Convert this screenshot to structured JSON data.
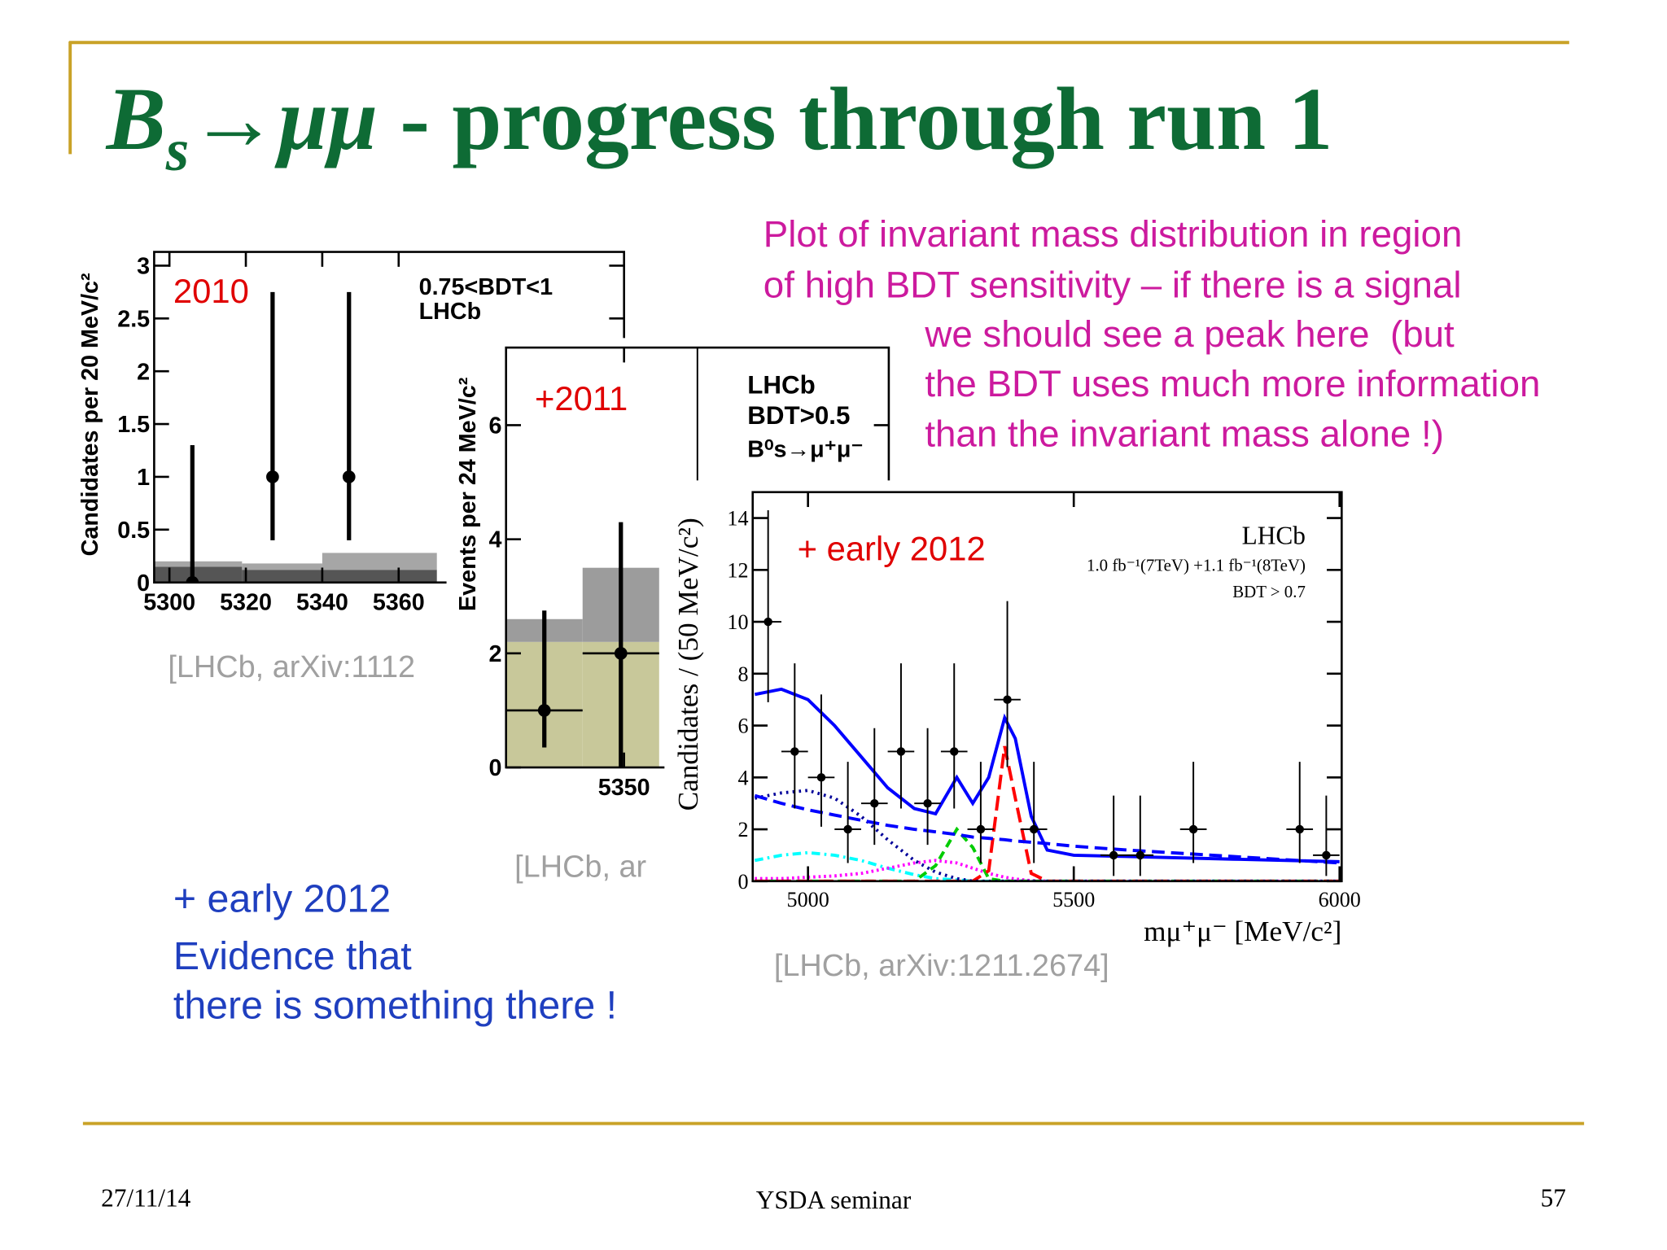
{
  "slide": {
    "title": {
      "b": "B",
      "sub": "s",
      "arrow": "→μμ",
      "rest": " - progress through run 1"
    },
    "note": [
      "Plot of invariant mass distribution in region",
      "of high BDT sensitivity – if there is a signal",
      "we should see a peak here  (but",
      "the BDT uses much more information",
      "than the invariant mass alone !)"
    ],
    "summary": [
      "+ early 2012",
      "Evidence that",
      "there is something there !"
    ],
    "footer": {
      "date": "27/11/14",
      "event": "YSDA seminar",
      "page": "57"
    }
  },
  "chart_data": [
    {
      "type": "scatter",
      "ylabel": "Candidates per 20 MeV/c²",
      "annotations": [
        "2010",
        "0.75<BDT<1",
        "LHCb"
      ],
      "source": "[LHCb, arXiv:1112",
      "xlim": [
        5296,
        5419
      ],
      "ylim": [
        0,
        3.13
      ],
      "xticks": [
        5300,
        5320,
        5340,
        5360
      ],
      "yticks": [
        0,
        0.5,
        1,
        1.5,
        2,
        2.5,
        3
      ],
      "histogram": {
        "bins": [
          5296,
          5319,
          5340,
          5370
        ],
        "layers": [
          {
            "color": "#555555",
            "values": [
              0.15,
              0.12,
              0.12
            ]
          },
          {
            "color": "#a6a6a6",
            "values": [
              0.05,
              0.06,
              0.16
            ]
          }
        ]
      },
      "points": {
        "color": "#000000",
        "x": [
          5306,
          5327,
          5347
        ],
        "values": [
          0,
          1,
          1
        ],
        "err_low": [
          0,
          0.6,
          0.6
        ],
        "err_high": [
          1.3,
          1.75,
          1.75
        ]
      }
    },
    {
      "type": "scatter",
      "ylabel": "Events per 24 MeV/c²",
      "annotations": [
        "+2011",
        "LHCb",
        "BDT>0.5",
        "B⁰s→μ⁺μ⁻"
      ],
      "source": "[LHCb, ar",
      "xlim": [
        5313,
        5433
      ],
      "ylim": [
        0,
        7.36
      ],
      "xticks": [
        5350
      ],
      "yticks": [
        0,
        2,
        4,
        6
      ],
      "signal_window_x": 5373,
      "histogram": {
        "bins": [
          5313,
          5337,
          5361
        ],
        "layers": [
          {
            "color": "#c8c89a",
            "values": [
              2.2,
              2.2
            ]
          },
          {
            "color": "#9c9c9c",
            "values": [
              0.4,
              1.3
            ]
          }
        ]
      },
      "points": {
        "color": "#000000",
        "x": [
          5325,
          5349
        ],
        "values": [
          1,
          2
        ],
        "err_low": [
          0.65,
          2
        ],
        "err_high": [
          1.75,
          2.3
        ],
        "x_error": 12
      }
    },
    {
      "type": "scatter",
      "ylabel": "Candidates / (50 MeV/c²)",
      "xlabel": "mμ⁺μ⁻ [MeV/c²]",
      "annotations": [
        "+ early 2012",
        "LHCb",
        "1.0 fb⁻¹(7TeV) +1.1 fb⁻¹(8TeV)",
        "BDT > 0.7"
      ],
      "source": "[LHCb, arXiv:1211.2674]",
      "xlim": [
        4896,
        6004
      ],
      "ylim": [
        0,
        15
      ],
      "xticks": [
        5000,
        5500,
        6000
      ],
      "yticks": [
        0,
        2,
        4,
        6,
        8,
        10,
        12,
        14
      ],
      "points": {
        "color": "#000000",
        "x": [
          4925,
          4975,
          5025,
          5075,
          5125,
          5175,
          5225,
          5275,
          5325,
          5375,
          5425,
          5575,
          5625,
          5725,
          5925,
          5975
        ],
        "values": [
          10,
          5,
          4,
          2,
          3,
          5,
          3,
          5,
          2,
          7,
          2,
          1,
          1,
          2,
          2,
          1
        ],
        "err_low": [
          3.1,
          2.2,
          1.9,
          1.3,
          1.6,
          2.2,
          1.6,
          2.2,
          1.3,
          2.6,
          1.3,
          0.8,
          0.8,
          1.3,
          1.3,
          0.8
        ],
        "err_high": [
          4.3,
          3.4,
          3.2,
          2.6,
          2.9,
          3.4,
          2.9,
          3.4,
          2.6,
          3.8,
          2.6,
          2.3,
          2.3,
          2.6,
          2.6,
          2.3
        ],
        "x_error": 25
      },
      "curve_x": [
        4900,
        4950,
        5000,
        5050,
        5100,
        5150,
        5200,
        5240,
        5280,
        5310,
        5340,
        5370,
        5390,
        5420,
        5450,
        5500,
        5600,
        5800,
        6000
      ],
      "curves": [
        {
          "color": "#00ffff",
          "dash": "8 4 2 4",
          "values": [
            0.8,
            1.0,
            1.1,
            1.0,
            0.8,
            0.5,
            0.25,
            0.1,
            0.05,
            0,
            0,
            0,
            0,
            0,
            0,
            0,
            0,
            0,
            0
          ]
        },
        {
          "color": "#ff00ff",
          "dash": "2 3",
          "values": [
            0.1,
            0.1,
            0.15,
            0.2,
            0.3,
            0.5,
            0.7,
            0.8,
            0.7,
            0.5,
            0.3,
            0.15,
            0.08,
            0.02,
            0,
            0,
            0,
            0,
            0
          ]
        },
        {
          "color": "#00cc00",
          "dash": "8 5",
          "values": [
            0,
            0,
            0,
            0,
            0,
            0,
            0,
            0.6,
            2.0,
            1.3,
            0.1,
            0,
            0,
            0,
            0,
            0,
            0,
            0,
            0
          ]
        },
        {
          "color": "#ff0000",
          "dash": "14 6",
          "values": [
            0,
            0,
            0,
            0,
            0,
            0,
            0,
            0,
            0,
            0,
            0.4,
            5.2,
            3.2,
            0.3,
            0,
            0,
            0,
            0,
            0
          ]
        },
        {
          "color": "#000099",
          "dash": "2 4",
          "values": [
            3.2,
            3.4,
            3.5,
            3.2,
            2.5,
            1.6,
            0.8,
            0.35,
            0.1,
            0,
            0,
            0,
            0,
            0,
            0,
            0,
            0,
            0,
            0
          ]
        },
        {
          "color": "#0000ff",
          "dash": "12 6",
          "values": [
            3.3,
            3.0,
            2.75,
            2.55,
            2.35,
            2.15,
            2.0,
            1.9,
            1.8,
            1.7,
            1.65,
            1.6,
            1.55,
            1.5,
            1.45,
            1.35,
            1.2,
            0.95,
            0.7
          ]
        },
        {
          "color": "#0000ff",
          "dash": "",
          "values": [
            7.2,
            7.4,
            7.0,
            6.0,
            4.8,
            3.6,
            2.8,
            2.6,
            4.0,
            3.0,
            4.0,
            6.3,
            5.5,
            2.5,
            1.2,
            1.0,
            0.95,
            0.85,
            0.75
          ]
        }
      ]
    }
  ]
}
